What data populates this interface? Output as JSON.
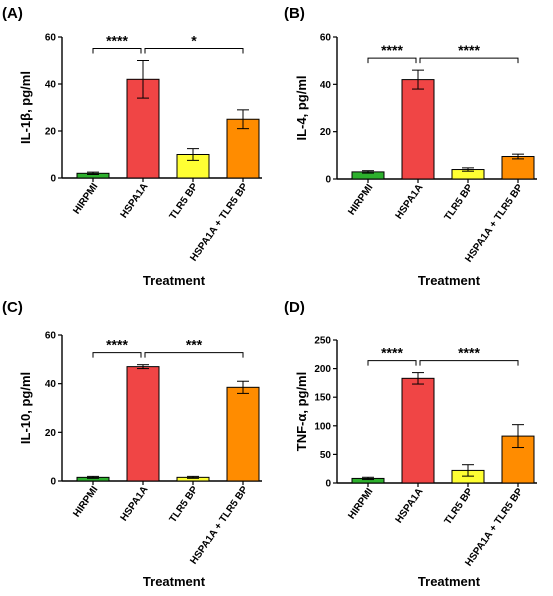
{
  "colors": {
    "HIRPMI": "#2db02d",
    "HSPA1A": "#f04545",
    "TLR5 BP": "#ffff33",
    "HSPA1A + TLR5 BP": "#ff8c00",
    "axis": "#000000"
  },
  "chart_data": [
    {
      "type": "bar",
      "panel": "(A)",
      "ylabel": "IL-1β, pg/ml",
      "xlabel": "Treatment",
      "categories": [
        "HIRPMI",
        "HSPA1A",
        "TLR5 BP",
        "HSPA1A + TLR5 BP"
      ],
      "values": [
        2,
        42,
        10,
        25
      ],
      "errors": [
        0.5,
        8,
        2.5,
        4
      ],
      "ylim": [
        0,
        60
      ],
      "yticks": [
        0,
        20,
        40,
        60
      ],
      "significance": [
        {
          "from": 0,
          "to": 1,
          "label": "****"
        },
        {
          "from": 1,
          "to": 3,
          "label": "*"
        }
      ]
    },
    {
      "type": "bar",
      "panel": "(B)",
      "ylabel": "IL-4, pg/ml",
      "xlabel": "Treatment",
      "categories": [
        "HIRPMI",
        "HSPA1A",
        "TLR5 BP",
        "HSPA1A + TLR5 BP"
      ],
      "values": [
        3,
        42,
        4,
        9.5
      ],
      "errors": [
        0.5,
        4,
        0.7,
        1
      ],
      "ylim": [
        0,
        60
      ],
      "yticks": [
        0,
        20,
        40,
        60
      ],
      "significance": [
        {
          "from": 0,
          "to": 1,
          "label": "****"
        },
        {
          "from": 1,
          "to": 3,
          "label": "****"
        }
      ]
    },
    {
      "type": "bar",
      "panel": "(C)",
      "ylabel": "IL-10, pg/ml",
      "xlabel": "Treatment",
      "categories": [
        "HIRPMI",
        "HSPA1A",
        "TLR5 BP",
        "HSPA1A + TLR5 BP"
      ],
      "values": [
        1.5,
        47,
        1.5,
        38.5
      ],
      "errors": [
        0.4,
        0.8,
        0.4,
        2.5
      ],
      "ylim": [
        0,
        60
      ],
      "yticks": [
        0,
        20,
        40,
        60
      ],
      "significance": [
        {
          "from": 0,
          "to": 1,
          "label": "****"
        },
        {
          "from": 1,
          "to": 3,
          "label": "***"
        }
      ]
    },
    {
      "type": "bar",
      "panel": "(D)",
      "ylabel": "TNF-α, pg/ml",
      "xlabel": "Treatment",
      "categories": [
        "HIRPMI",
        "HSPA1A",
        "TLR5 BP",
        "HSPA1A + TLR5 BP"
      ],
      "values": [
        8,
        183,
        22,
        82
      ],
      "errors": [
        2,
        10,
        10,
        20
      ],
      "ylim": [
        0,
        250
      ],
      "yticks": [
        0,
        50,
        100,
        150,
        200,
        250
      ],
      "significance": [
        {
          "from": 0,
          "to": 1,
          "label": "****"
        },
        {
          "from": 1,
          "to": 3,
          "label": "****"
        }
      ]
    }
  ]
}
